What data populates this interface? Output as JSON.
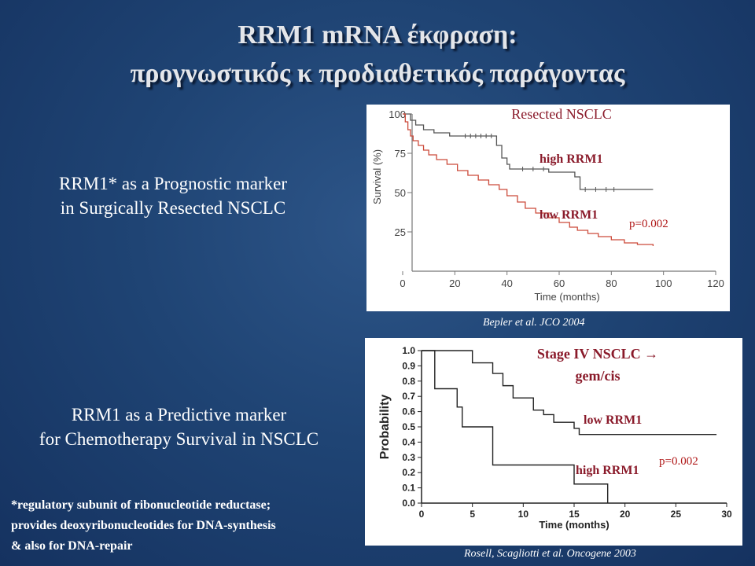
{
  "slide": {
    "title_line1": "RRM1 mRNA έκφραση:",
    "title_line2": "προγνωστικός κ προδιαθετικός παράγοντας",
    "side1_line1": "RRM1* as a Prognostic marker",
    "side1_line2": "in Surgically Resected NSCLC",
    "side2_line1": "RRM1 as a Predictive marker",
    "side2_line2": "for Chemotherapy Survival in NSCLC",
    "footnote_line1": "*regulatory subunit of ribonucleotide reductase;",
    "footnote_line2": "provides deoxyribonucleotides for DNA-synthesis",
    "footnote_line3": "& also for DNA-repair",
    "cite1": "Bepler et al. JCO 2004",
    "cite2": "Rosell, Scagliotti et al. Oncogene 2003"
  },
  "chart_data": [
    {
      "type": "line",
      "step": true,
      "title": "Resected NSCLC",
      "xlabel": "Time (months)",
      "ylabel": "Survival (%)",
      "xlim": [
        0,
        120
      ],
      "ylim": [
        0,
        100
      ],
      "xticks": [
        0,
        20,
        40,
        60,
        80,
        100,
        120
      ],
      "yticks": [
        0,
        25,
        50,
        75,
        100
      ],
      "annotation": "p=0.002",
      "colors": {
        "high": "#555555",
        "low": "#cc4a3a",
        "label": "#8a1a2a",
        "p": "#b01818"
      },
      "series": [
        {
          "name": "high RRM1",
          "x": [
            0,
            3,
            5,
            8,
            12,
            18,
            36,
            38,
            40,
            41,
            56,
            66,
            68,
            96
          ],
          "y": [
            100,
            96,
            93,
            90,
            88,
            86,
            80,
            72,
            68,
            65,
            63,
            60,
            52,
            52
          ]
        },
        {
          "name": "low RRM1",
          "x": [
            0,
            1,
            2,
            3,
            4,
            6,
            8,
            10,
            13,
            17,
            21,
            25,
            29,
            33,
            37,
            40,
            44,
            47,
            51,
            56,
            60,
            64,
            67,
            71,
            75,
            80,
            85,
            90,
            96
          ],
          "y": [
            100,
            95,
            90,
            86,
            83,
            80,
            77,
            74,
            71,
            68,
            64,
            61,
            58,
            55,
            52,
            48,
            44,
            40,
            37,
            34,
            31,
            28,
            26,
            24,
            22,
            20,
            18,
            17,
            16
          ]
        }
      ]
    },
    {
      "type": "line",
      "step": true,
      "title": "Stage IV  NSCLC → gem/cis",
      "xlabel": "Time (months)",
      "ylabel": "Probability",
      "xlim": [
        0,
        30
      ],
      "ylim": [
        0,
        1
      ],
      "xticks": [
        0,
        5,
        10,
        15,
        20,
        25,
        30
      ],
      "yticks": [
        0.0,
        0.1,
        0.2,
        0.3,
        0.4,
        0.5,
        0.6,
        0.7,
        0.8,
        0.9,
        1.0
      ],
      "annotation": "p=0.002",
      "colors": {
        "line": "#222222",
        "label": "#8a1a2a",
        "p": "#b01818"
      },
      "series": [
        {
          "name": "low RRM1",
          "x": [
            0,
            5,
            7,
            8,
            9,
            11,
            12,
            13,
            14,
            15,
            15.5,
            29
          ],
          "y": [
            1.0,
            0.92,
            0.85,
            0.77,
            0.69,
            0.61,
            0.58,
            0.53,
            0.53,
            0.49,
            0.45,
            0.45
          ]
        },
        {
          "name": "high RRM1",
          "x": [
            0,
            1,
            1.3,
            3.5,
            4,
            7,
            14,
            15,
            18,
            18.3
          ],
          "y": [
            1.0,
            1.0,
            0.75,
            0.63,
            0.5,
            0.25,
            0.25,
            0.125,
            0.125,
            0.0
          ]
        }
      ]
    }
  ]
}
